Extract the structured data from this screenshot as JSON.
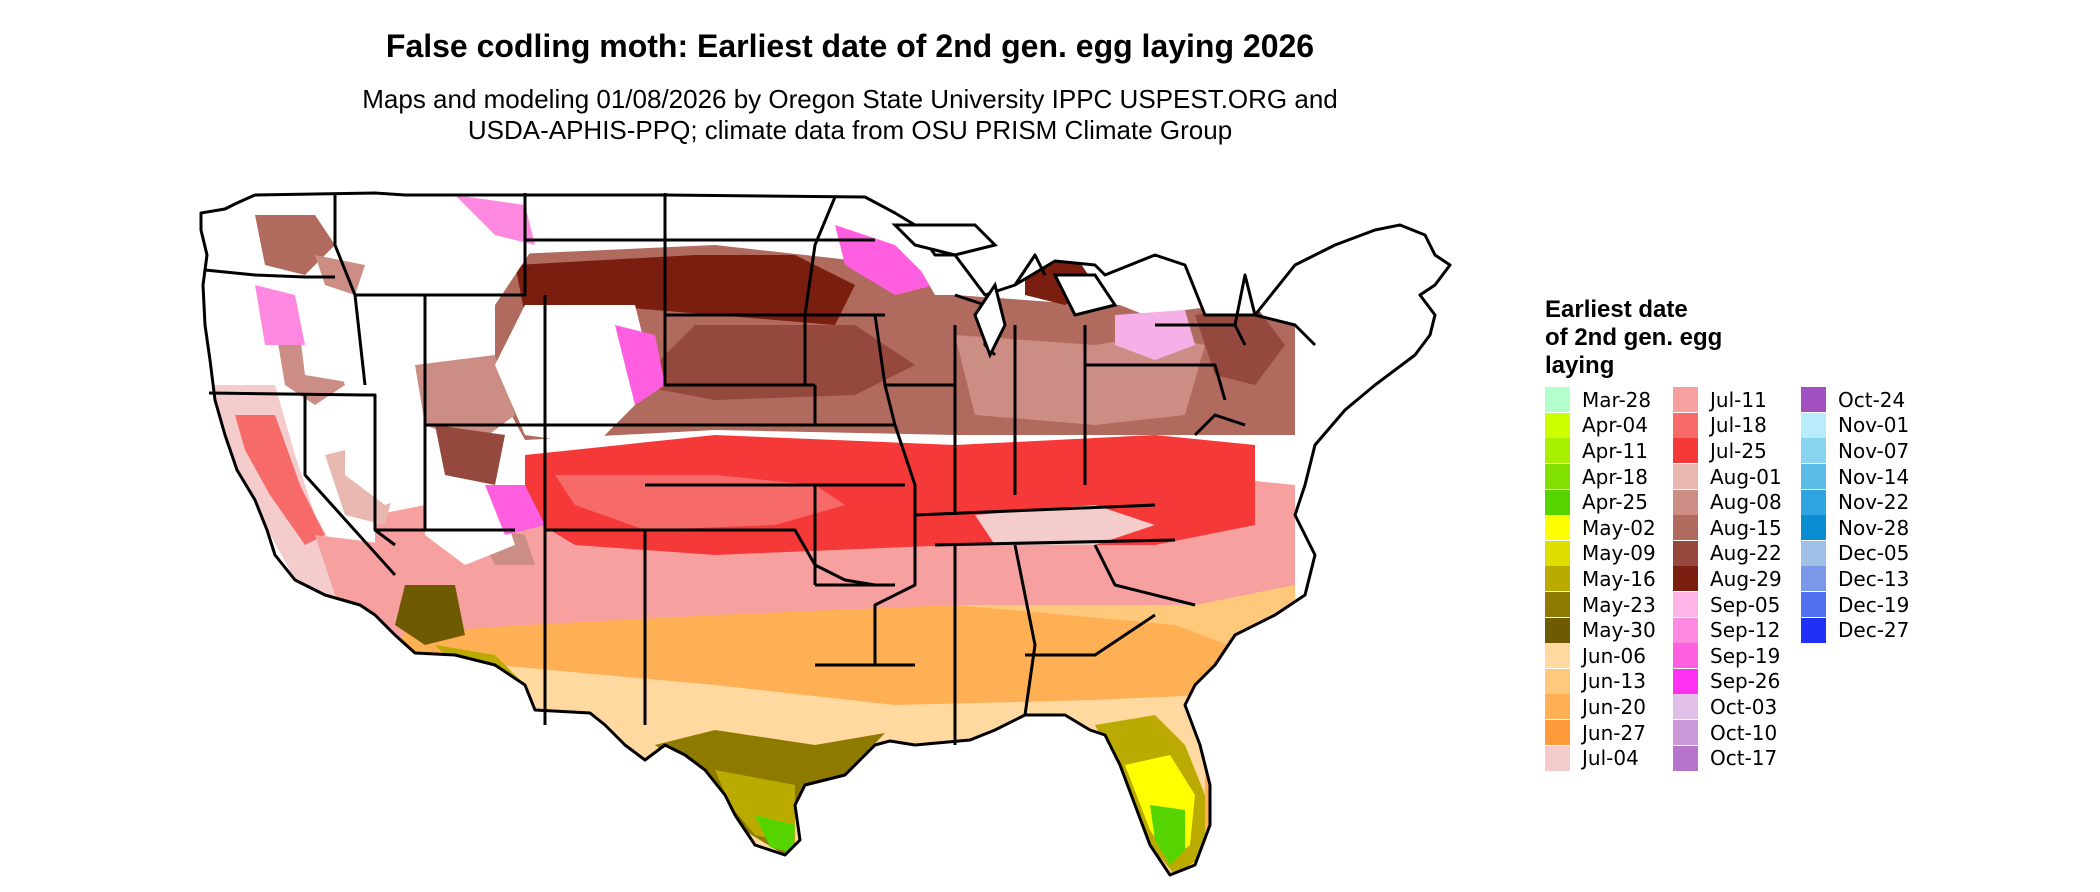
{
  "title": "False codling moth: Earliest date of 2nd gen. egg laying 2026",
  "subtitle_line1": "Maps and modeling 01/08/2026 by Oregon State University IPPC USPEST.ORG and",
  "subtitle_line2": "USDA-APHIS-PPQ; climate data from OSU PRISM Climate Group",
  "legend": {
    "title_lines": [
      "Earliest date",
      "of 2nd gen. egg",
      "laying"
    ],
    "columns": [
      [
        {
          "label": "Mar-28",
          "color": "#b3ffcc"
        },
        {
          "label": "Apr-04",
          "color": "#ccff00"
        },
        {
          "label": "Apr-11",
          "color": "#a8f000"
        },
        {
          "label": "Apr-18",
          "color": "#80e000"
        },
        {
          "label": "Apr-25",
          "color": "#55d400"
        },
        {
          "label": "May-02",
          "color": "#ffff00"
        },
        {
          "label": "May-09",
          "color": "#dddd00"
        },
        {
          "label": "May-16",
          "color": "#bbaa00"
        },
        {
          "label": "May-23",
          "color": "#8f7a00"
        },
        {
          "label": "May-30",
          "color": "#6e5a00"
        },
        {
          "label": "Jun-06",
          "color": "#ffd9a0"
        },
        {
          "label": "Jun-13",
          "color": "#ffc87a"
        },
        {
          "label": "Jun-20",
          "color": "#ffb055"
        },
        {
          "label": "Jun-27",
          "color": "#ff9a3a"
        },
        {
          "label": "Jul-04",
          "color": "#f4cccc"
        }
      ],
      [
        {
          "label": "Jul-11",
          "color": "#f7a0a0"
        },
        {
          "label": "Jul-18",
          "color": "#f76a6a"
        },
        {
          "label": "Jul-25",
          "color": "#f53838"
        },
        {
          "label": "Aug-01",
          "color": "#e8b8b0"
        },
        {
          "label": "Aug-08",
          "color": "#cc8e84"
        },
        {
          "label": "Aug-15",
          "color": "#b06a5e"
        },
        {
          "label": "Aug-22",
          "color": "#94483e"
        },
        {
          "label": "Aug-29",
          "color": "#7a1e10"
        },
        {
          "label": "Sep-05",
          "color": "#ffb3e6"
        },
        {
          "label": "Sep-12",
          "color": "#ff88e0"
        },
        {
          "label": "Sep-19",
          "color": "#ff5ee0"
        },
        {
          "label": "Sep-26",
          "color": "#ff30f0"
        },
        {
          "label": "Oct-03",
          "color": "#e0c0e8"
        },
        {
          "label": "Oct-10",
          "color": "#cc99d8"
        },
        {
          "label": "Oct-17",
          "color": "#b674cc"
        }
      ],
      [
        {
          "label": "Oct-24",
          "color": "#a050c0"
        },
        {
          "label": "Nov-01",
          "color": "#b8ecfc"
        },
        {
          "label": "Nov-07",
          "color": "#88d4f0"
        },
        {
          "label": "Nov-14",
          "color": "#5cbce8"
        },
        {
          "label": "Nov-22",
          "color": "#30a4e0"
        },
        {
          "label": "Nov-28",
          "color": "#0a8cd0"
        },
        {
          "label": "Dec-05",
          "color": "#a0c0e8"
        },
        {
          "label": "Dec-13",
          "color": "#7a98e8"
        },
        {
          "label": "Dec-19",
          "color": "#5070f0"
        },
        {
          "label": "Dec-27",
          "color": "#2030f8"
        }
      ]
    ]
  }
}
